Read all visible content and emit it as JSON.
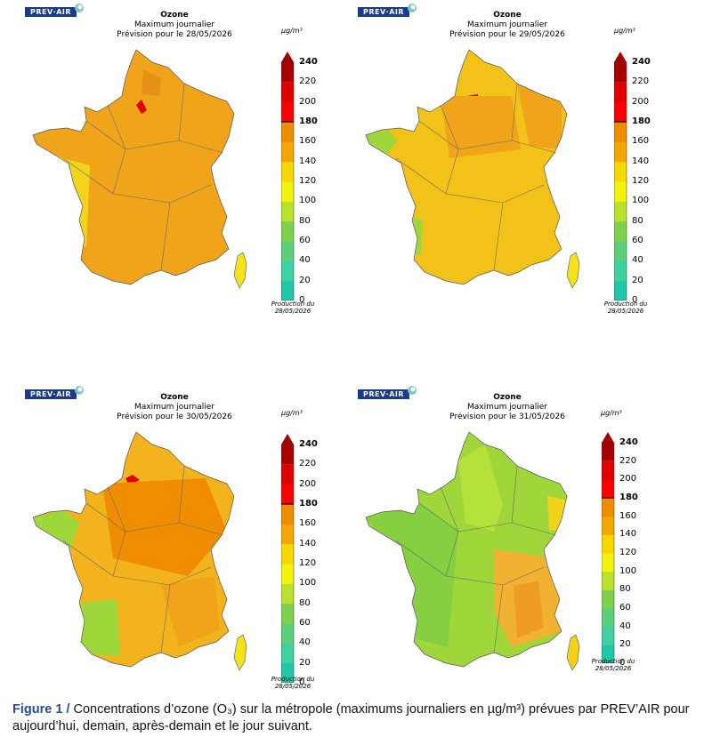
{
  "logo_text": "PREV·AIR",
  "unit_label": "µg/m³",
  "production_line1": "Production du",
  "production_line2": "28/05/2026",
  "colorbar": {
    "ticks": [
      "0",
      "20",
      "40",
      "60",
      "80",
      "100",
      "120",
      "140",
      "160",
      "180",
      "200",
      "220",
      "240"
    ],
    "bold_ticks": [
      "180",
      "240"
    ],
    "colors": [
      "#1ec8a8",
      "#3dd0a0",
      "#5ccf7a",
      "#7ed14a",
      "#b9e22c",
      "#f3f20a",
      "#f5d800",
      "#f2a700",
      "#f08c00",
      "#ff0000",
      "#e00000",
      "#a80000"
    ]
  },
  "panels": [
    {
      "title": "Ozone",
      "subtitle": "Maximum journalier",
      "date_line": "Prévision pour le 28/05/2026",
      "base": "#f0a41a"
    },
    {
      "title": "Ozone",
      "subtitle": "Maximum journalier",
      "date_line": "Prévision pour le 29/05/2026",
      "base": "#f3c218"
    },
    {
      "title": "Ozone",
      "subtitle": "Maximum journalier",
      "date_line": "Prévision pour le 30/05/2026",
      "base": "#f2b31c"
    },
    {
      "title": "Ozone",
      "subtitle": "Maximum journalier",
      "date_line": "Prévision pour le 31/05/2026",
      "base": "#9fd63a"
    }
  ],
  "caption": {
    "figure_label": "Figure 1 /",
    "text": " Concentrations d’ozone (O₃) sur la métropole (maximums journaliers en µg/m³) prévues par PREV’AIR pour aujourd’hui, demain, après-demain et le jour suivant."
  }
}
